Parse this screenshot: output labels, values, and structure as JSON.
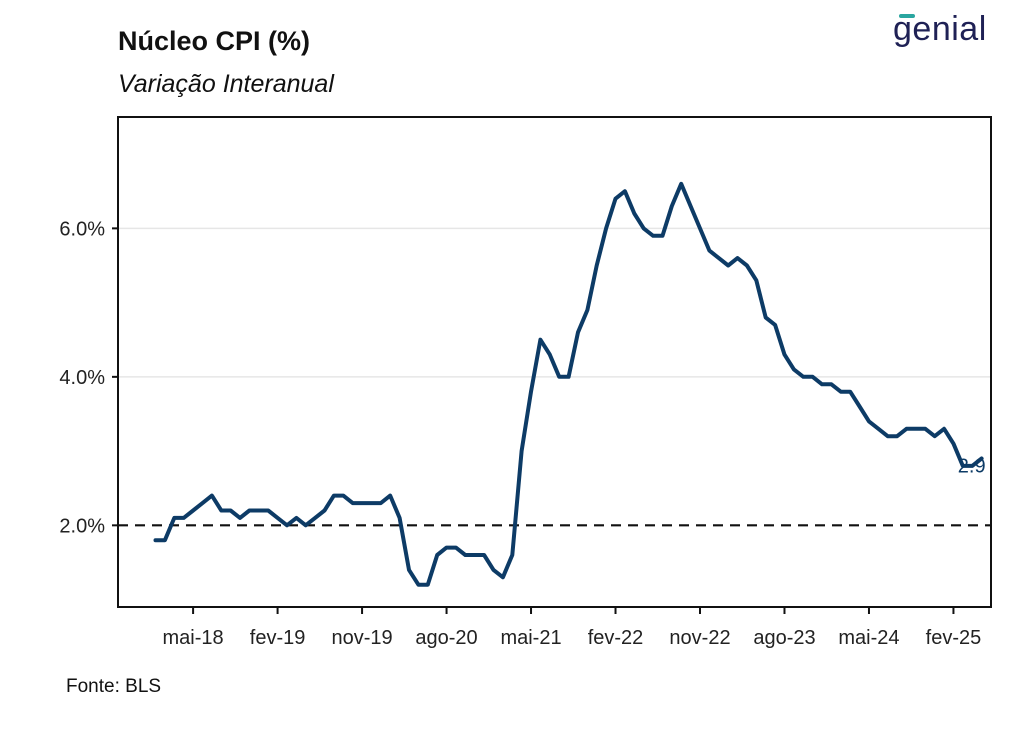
{
  "header": {
    "title": "Núcleo CPI (%)",
    "subtitle": "Variação Interanual"
  },
  "logo": {
    "text": "genial",
    "color": "#1f2155",
    "accent_color": "#2aa6a0"
  },
  "footer": {
    "source": "Fonte: BLS"
  },
  "chart_data": {
    "type": "line",
    "title": "Núcleo CPI (%)",
    "subtitle": "Variação Interanual",
    "xlabel": "",
    "ylabel": "",
    "ylim": [
      0.9,
      7.5
    ],
    "y_ticks": [
      2.0,
      4.0,
      6.0
    ],
    "y_tick_labels": [
      "2.0%",
      "4.0%",
      "6.0%"
    ],
    "x_tick_labels": [
      "mai-18",
      "fev-19",
      "nov-19",
      "ago-20",
      "mai-21",
      "fev-22",
      "nov-22",
      "ago-23",
      "mai-24",
      "fev-25"
    ],
    "x_tick_dates": [
      "2018-05",
      "2019-02",
      "2019-11",
      "2020-08",
      "2021-05",
      "2022-02",
      "2022-11",
      "2023-08",
      "2024-05",
      "2025-02"
    ],
    "x_range": [
      "2017-09",
      "2025-06"
    ],
    "grid": "horizontal",
    "reference_line": {
      "value": 2.0,
      "style": "dashed",
      "color": "#111111"
    },
    "series": [
      {
        "color": "#0d3b66",
        "end_label": "2.9",
        "x": [
          "2018-01",
          "2018-02",
          "2018-03",
          "2018-04",
          "2018-05",
          "2018-06",
          "2018-07",
          "2018-08",
          "2018-09",
          "2018-10",
          "2018-11",
          "2018-12",
          "2019-01",
          "2019-02",
          "2019-03",
          "2019-04",
          "2019-05",
          "2019-06",
          "2019-07",
          "2019-08",
          "2019-09",
          "2019-10",
          "2019-11",
          "2019-12",
          "2020-01",
          "2020-02",
          "2020-03",
          "2020-04",
          "2020-05",
          "2020-06",
          "2020-07",
          "2020-08",
          "2020-09",
          "2020-10",
          "2020-11",
          "2020-12",
          "2021-01",
          "2021-02",
          "2021-03",
          "2021-04",
          "2021-05",
          "2021-06",
          "2021-07",
          "2021-08",
          "2021-09",
          "2021-10",
          "2021-11",
          "2021-12",
          "2022-01",
          "2022-02",
          "2022-03",
          "2022-04",
          "2022-05",
          "2022-06",
          "2022-07",
          "2022-08",
          "2022-09",
          "2022-10",
          "2022-11",
          "2022-12",
          "2023-01",
          "2023-02",
          "2023-03",
          "2023-04",
          "2023-05",
          "2023-06",
          "2023-07",
          "2023-08",
          "2023-09",
          "2023-10",
          "2023-11",
          "2023-12",
          "2024-01",
          "2024-02",
          "2024-03",
          "2024-04",
          "2024-05",
          "2024-06",
          "2024-07",
          "2024-08",
          "2024-09",
          "2024-10",
          "2024-11",
          "2024-12",
          "2025-01",
          "2025-02",
          "2025-03",
          "2025-04",
          "2025-05"
        ],
        "values": [
          1.8,
          1.8,
          2.1,
          2.1,
          2.2,
          2.3,
          2.4,
          2.2,
          2.2,
          2.1,
          2.2,
          2.2,
          2.2,
          2.1,
          2.0,
          2.1,
          2.0,
          2.1,
          2.2,
          2.4,
          2.4,
          2.3,
          2.3,
          2.3,
          2.3,
          2.4,
          2.1,
          1.4,
          1.2,
          1.2,
          1.6,
          1.7,
          1.7,
          1.6,
          1.6,
          1.6,
          1.4,
          1.3,
          1.6,
          3.0,
          3.8,
          4.5,
          4.3,
          4.0,
          4.0,
          4.6,
          4.9,
          5.5,
          6.0,
          6.4,
          6.5,
          6.2,
          6.0,
          5.9,
          5.9,
          6.3,
          6.6,
          6.3,
          6.0,
          5.7,
          5.6,
          5.5,
          5.6,
          5.5,
          5.3,
          4.8,
          4.7,
          4.3,
          4.1,
          4.0,
          4.0,
          3.9,
          3.9,
          3.8,
          3.8,
          3.6,
          3.4,
          3.3,
          3.2,
          3.2,
          3.3,
          3.3,
          3.3,
          3.2,
          3.3,
          3.1,
          2.8,
          2.8,
          2.9
        ]
      }
    ]
  }
}
